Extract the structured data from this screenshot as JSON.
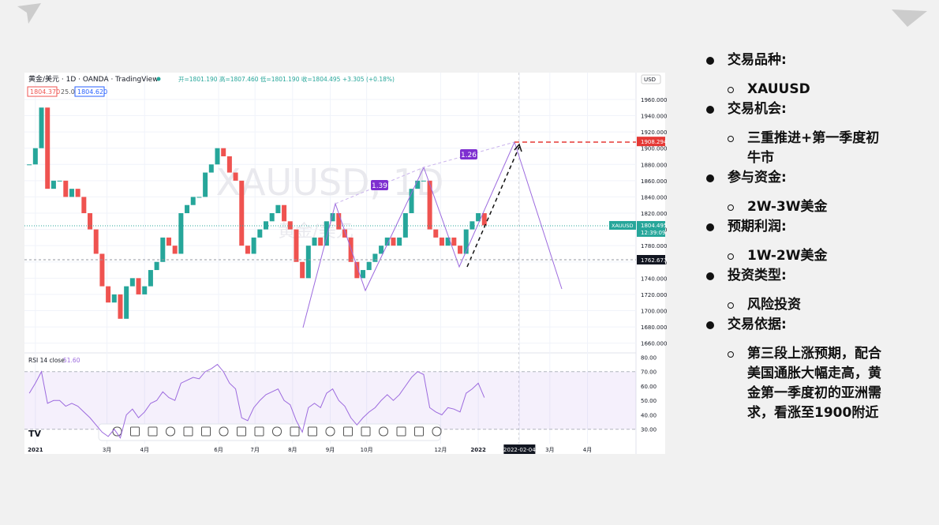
{
  "slide": {
    "items": [
      {
        "title": "交易品种:",
        "details": [
          "XAUUSD"
        ]
      },
      {
        "title": "交易机会:",
        "details": [
          "三重推进+第一季度初牛市"
        ]
      },
      {
        "title": "参与资金:",
        "details": [
          "2W-3W美金"
        ]
      },
      {
        "title": "预期利润:",
        "details": [
          "1W-2W美金"
        ]
      },
      {
        "title": "投资类型:",
        "details": [
          "风险投资"
        ]
      },
      {
        "title": "交易依据:",
        "details": [
          "第三段上涨预期，配合美国通胀大幅走高，黄金第一季度初的亚洲需求，看涨至1900附近"
        ]
      }
    ]
  },
  "chart_data": {
    "type": "candlestick",
    "header": {
      "symbol": "黄金/美元 · 1D · OANDA · TradingView",
      "ohlc": "开=1801.190 高=1807.460 低=1801.190 收=1804.495 +3.305 (+0.18%)",
      "bid": "1804.370",
      "spread": "25.0",
      "ask": "1804.620",
      "currency": "USD"
    },
    "watermark": "XAUUSD, 1D",
    "watermark_sub": "黄金/美元",
    "ratios": [
      "1.39",
      "1.26"
    ],
    "up_color": "#26a69a",
    "down_color": "#ef5350",
    "x": [
      -5,
      0,
      5,
      10,
      15,
      20,
      25,
      30,
      35,
      40,
      45,
      50,
      55,
      60,
      65,
      70,
      75,
      80,
      85,
      90,
      95,
      100,
      105,
      110,
      115,
      120,
      125,
      130,
      135,
      140,
      145,
      150,
      155,
      160,
      165,
      170,
      175,
      180,
      185,
      190,
      195,
      200,
      205,
      210,
      215,
      220,
      225,
      230,
      235,
      240,
      245,
      250,
      255,
      260,
      265,
      270,
      275,
      280,
      285,
      290,
      295,
      300,
      305,
      310,
      315,
      320,
      325,
      330,
      335,
      340,
      345,
      350,
      355,
      360,
      365,
      370
    ],
    "values": [
      1880,
      1900,
      1950,
      1850,
      1860,
      1860,
      1840,
      1850,
      1840,
      1820,
      1800,
      1770,
      1730,
      1710,
      1720,
      1690,
      1730,
      1740,
      1720,
      1730,
      1750,
      1760,
      1790,
      1780,
      1770,
      1820,
      1830,
      1840,
      1840,
      1870,
      1880,
      1900,
      1890,
      1870,
      1860,
      1780,
      1770,
      1790,
      1800,
      1810,
      1820,
      1830,
      1810,
      1800,
      1760,
      1740,
      1780,
      1790,
      1780,
      1810,
      1820,
      1800,
      1790,
      1760,
      1740,
      1750,
      1760,
      1770,
      1780,
      1790,
      1780,
      1790,
      1820,
      1850,
      1860,
      1860,
      1800,
      1790,
      1780,
      1790,
      1780,
      1770,
      1800,
      1810,
      1820,
      1805
    ],
    "xlim": [
      -9,
      495
    ],
    "xticks": [
      {
        "value": 0,
        "label": "2021"
      },
      {
        "value": 59,
        "label": "3月"
      },
      {
        "value": 90,
        "label": "4月"
      },
      {
        "value": 151,
        "label": "6月"
      },
      {
        "value": 181,
        "label": "7月"
      },
      {
        "value": 212,
        "label": "8月"
      },
      {
        "value": 243,
        "label": "9月"
      },
      {
        "value": 273,
        "label": "10月"
      },
      {
        "value": 334,
        "label": "12月"
      },
      {
        "value": 365,
        "label": "2022"
      },
      {
        "value": 399,
        "label": "2022-02-04"
      },
      {
        "value": 424,
        "label": "3月"
      },
      {
        "value": 455,
        "label": "4月"
      }
    ],
    "ylim": [
      1648,
      1993
    ],
    "yticks": [
      {
        "value": 1660,
        "label": "1660.000"
      },
      {
        "value": 1680,
        "label": "1680.000"
      },
      {
        "value": 1700,
        "label": "1700.000"
      },
      {
        "value": 1720,
        "label": "1720.000"
      },
      {
        "value": 1740,
        "label": "1740.000"
      },
      {
        "value": 1760,
        "label": "1760.000"
      },
      {
        "value": 1780,
        "label": "1780.000"
      },
      {
        "value": 1800,
        "label": "1800.000"
      },
      {
        "value": 1820,
        "label": "1820.000"
      },
      {
        "value": 1840,
        "label": "1840.000"
      },
      {
        "value": 1860,
        "label": "1860.000"
      },
      {
        "value": 1880,
        "label": "1880.000"
      },
      {
        "value": 1900,
        "label": "1900.000"
      },
      {
        "value": 1920,
        "label": "1920.000"
      },
      {
        "value": 1940,
        "label": "1940.000"
      },
      {
        "value": 1960,
        "label": "1960.000"
      }
    ],
    "target_price": 1908.294,
    "last_price": 1804.495,
    "last_symbol": "XAUUSD",
    "countdown": "12:39:09",
    "cursor_price": 1762.673,
    "rsi": {
      "title": "RSI 14 close",
      "last": {
        "value": 51.6,
        "label": "51.60"
      },
      "color": "#9c6ade",
      "values": [
        55,
        62,
        70,
        48,
        50,
        50,
        46,
        48,
        46,
        42,
        38,
        33,
        28,
        25,
        30,
        24,
        40,
        44,
        38,
        42,
        48,
        50,
        56,
        52,
        50,
        62,
        64,
        66,
        65,
        70,
        72,
        75,
        70,
        62,
        58,
        38,
        36,
        45,
        50,
        54,
        56,
        58,
        50,
        47,
        36,
        28,
        45,
        48,
        45,
        55,
        58,
        50,
        46,
        38,
        33,
        38,
        42,
        45,
        50,
        54,
        50,
        54,
        60,
        66,
        70,
        68,
        45,
        42,
        40,
        45,
        44,
        42,
        55,
        58,
        62,
        52
      ],
      "ylim": [
        20,
        83
      ],
      "yticks": [
        {
          "value": 30,
          "label": "30.00"
        },
        {
          "value": 40,
          "label": "40.00"
        },
        {
          "value": 50,
          "label": "50.00"
        },
        {
          "value": 60,
          "label": "60.00"
        },
        {
          "value": 70,
          "label": "70.00"
        },
        {
          "value": 80,
          "label": "80.00"
        }
      ]
    }
  }
}
